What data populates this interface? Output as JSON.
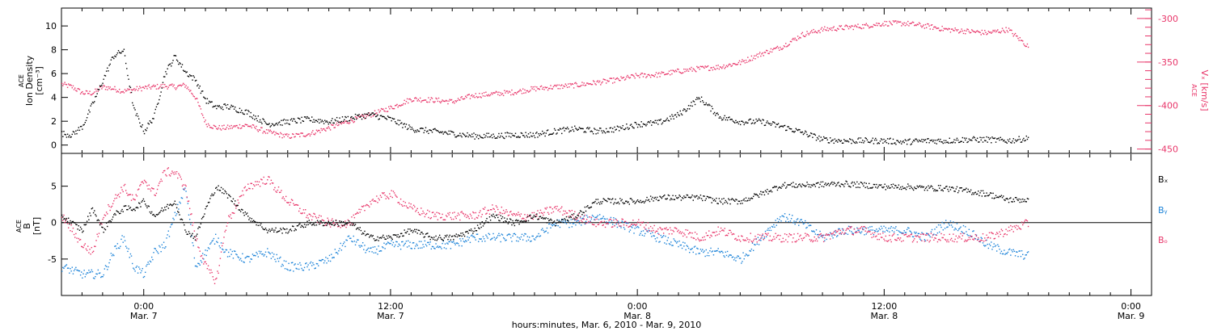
{
  "xaxis": {
    "label": "hours:minutes, Mar. 6, 2010 - Mar. 9, 2010",
    "ticks": [
      {
        "t": 0,
        "time": "0:00",
        "date": "Mar. 7"
      },
      {
        "t": 12,
        "time": "12:00",
        "date": "Mar. 7"
      },
      {
        "t": 24,
        "time": "0:00",
        "date": "Mar. 8"
      },
      {
        "t": 36,
        "time": "12:00",
        "date": "Mar. 8"
      },
      {
        "t": 48,
        "time": "0:00",
        "date": "Mar. 9"
      }
    ]
  },
  "colors": {
    "black": "#000000",
    "pink": "#e8366a",
    "blue": "#1a82d8"
  },
  "chart_data": [
    {
      "type": "scatter",
      "title": "",
      "x_units": "hours since 0:00 Mar. 7, 2010",
      "xlim": [
        -4,
        49
      ],
      "left_axis": {
        "label_line1": "ACE",
        "label_line2": "Ion Density",
        "label_line3": "[cm⁻³]",
        "ylim": [
          -0.7,
          11.5
        ],
        "ticks": [
          0,
          2,
          4,
          6,
          8,
          10
        ]
      },
      "right_axis": {
        "label_line1": "ACE",
        "label_line2": "Vₓ [km/s]",
        "ylim": [
          -455,
          -288
        ],
        "ticks": [
          -300,
          -350,
          -400,
          -450
        ],
        "color": "#e8366a"
      },
      "series": [
        {
          "axis": "left",
          "color": "#000000",
          "x": [
            -4,
            -3.5,
            -3,
            -2.5,
            -2,
            -1.5,
            -1,
            -0.5,
            0,
            0.5,
            1,
            1.5,
            2,
            2.5,
            3,
            3.5,
            4,
            5,
            6,
            7,
            8,
            9,
            10,
            11,
            12,
            13,
            14,
            15,
            16,
            17,
            18,
            19,
            20,
            21,
            22,
            23,
            24,
            25,
            26,
            27,
            28,
            29,
            30,
            31,
            32,
            33,
            34,
            35,
            36,
            37,
            38,
            39,
            40,
            41,
            42,
            43
          ],
          "y": [
            1.0,
            0.9,
            1.6,
            3.5,
            5.5,
            7.5,
            8.0,
            3.0,
            1.2,
            2.5,
            6.0,
            7.5,
            6.2,
            5.5,
            3.8,
            3.2,
            3.3,
            2.8,
            1.8,
            2.0,
            2.2,
            2.0,
            2.3,
            2.6,
            2.2,
            1.4,
            1.2,
            1.0,
            0.8,
            0.8,
            0.9,
            0.9,
            1.2,
            1.4,
            1.2,
            1.4,
            1.8,
            1.9,
            2.6,
            4.0,
            2.4,
            2.0,
            2.0,
            1.6,
            1.1,
            0.5,
            0.4,
            0.4,
            0.4,
            0.3,
            0.4,
            0.4,
            0.5,
            0.5,
            0.4,
            0.6
          ]
        },
        {
          "axis": "right",
          "color": "#e8366a",
          "x": [
            -4,
            -3.5,
            -3,
            -2.5,
            -2,
            -1.5,
            -1,
            -0.5,
            0,
            0.5,
            1,
            1.5,
            2,
            2.5,
            3,
            3.5,
            4,
            5,
            6,
            7,
            8,
            9,
            10,
            11,
            12,
            13,
            14,
            15,
            16,
            17,
            18,
            19,
            20,
            21,
            22,
            23,
            24,
            25,
            26,
            27,
            28,
            29,
            30,
            31,
            32,
            33,
            34,
            35,
            36,
            37,
            38,
            39,
            40,
            41,
            42,
            43
          ],
          "y": [
            -375,
            -378,
            -385,
            -385,
            -378,
            -380,
            -383,
            -381,
            -379,
            -378,
            -377,
            -378,
            -376,
            -390,
            -420,
            -425,
            -425,
            -422,
            -430,
            -435,
            -432,
            -425,
            -417,
            -410,
            -402,
            -392,
            -393,
            -395,
            -388,
            -386,
            -384,
            -380,
            -378,
            -376,
            -373,
            -370,
            -365,
            -364,
            -360,
            -357,
            -355,
            -350,
            -340,
            -332,
            -318,
            -312,
            -310,
            -308,
            -305,
            -305,
            -308,
            -312,
            -314,
            -316,
            -312,
            -332
          ]
        }
      ]
    },
    {
      "type": "scatter",
      "title": "",
      "x_units": "hours since 0:00 Mar. 7, 2010",
      "xlim": [
        -4,
        49
      ],
      "left_axis": {
        "label_line1": "ACE",
        "label_line2": "B",
        "label_line3": "[nT]",
        "ylim": [
          -10,
          9.5
        ],
        "ticks": [
          5,
          0,
          -5
        ]
      },
      "zero_line": true,
      "legend_position": "right",
      "series": [
        {
          "name": "Bₓ",
          "color": "#000000",
          "x": [
            -4,
            -3.5,
            -3,
            -2.5,
            -2,
            -1.5,
            -1,
            -0.5,
            0,
            0.5,
            1,
            1.5,
            2,
            2.5,
            3,
            3.5,
            4,
            5,
            6,
            7,
            8,
            9,
            10,
            11,
            12,
            13,
            14,
            15,
            16,
            17,
            18,
            19,
            20,
            21,
            22,
            23,
            24,
            25,
            26,
            27,
            28,
            29,
            30,
            31,
            32,
            33,
            34,
            35,
            36,
            37,
            38,
            39,
            40,
            41,
            42,
            43
          ],
          "y": [
            1,
            0,
            -1,
            2,
            -1,
            1,
            2,
            2,
            3,
            1,
            2,
            3,
            -1,
            -2,
            2,
            5,
            4,
            1,
            -1,
            -1,
            0,
            0,
            0,
            -2,
            -2,
            -1,
            -2,
            -2,
            -1,
            1,
            0,
            1,
            0,
            1,
            3,
            3,
            3,
            3.5,
            3.5,
            3.5,
            3,
            3,
            4,
            5.2,
            5.2,
            5.3,
            5.4,
            5.2,
            5.0,
            5.0,
            4.8,
            4.8,
            4.4,
            4.0,
            3.2,
            3.2
          ]
        },
        {
          "name": "Bᵧ",
          "color": "#1a82d8",
          "x": [
            -4,
            -3.5,
            -3,
            -2.5,
            -2,
            -1.5,
            -1,
            -0.5,
            0,
            0.5,
            1,
            1.5,
            2,
            2.5,
            3,
            3.5,
            4,
            5,
            6,
            7,
            8,
            9,
            10,
            11,
            12,
            13,
            14,
            15,
            16,
            17,
            18,
            19,
            20,
            21,
            22,
            23,
            24,
            25,
            26,
            27,
            28,
            29,
            30,
            31,
            32,
            33,
            34,
            35,
            36,
            37,
            38,
            39,
            40,
            41,
            42,
            43
          ],
          "y": [
            -6,
            -6.5,
            -7,
            -7,
            -7,
            -4,
            -2,
            -6,
            -7,
            -4,
            -3,
            1,
            5,
            -6,
            -4,
            -2,
            -4,
            -5,
            -4,
            -6,
            -6,
            -5,
            -2,
            -4,
            -3,
            -3,
            -3,
            -3,
            -2,
            -2,
            -2,
            -2,
            0,
            0,
            1,
            0,
            -1,
            -2,
            -3,
            -4,
            -4,
            -5,
            -2,
            1,
            0,
            -2,
            -1,
            -1,
            -1,
            -1,
            -2,
            0,
            -1,
            -3,
            -4,
            -4.5
          ]
        },
        {
          "name": "Bₒ",
          "color": "#e8366a",
          "x": [
            -4,
            -3.5,
            -3,
            -2.5,
            -2,
            -1.5,
            -1,
            -0.5,
            0,
            0.5,
            1,
            1.5,
            2,
            2.5,
            3,
            3.5,
            4,
            5,
            6,
            7,
            8,
            9,
            10,
            11,
            12,
            13,
            14,
            15,
            16,
            17,
            18,
            19,
            20,
            21,
            22,
            23,
            24,
            25,
            26,
            27,
            28,
            29,
            30,
            31,
            32,
            33,
            34,
            35,
            36,
            37,
            38,
            39,
            40,
            41,
            42,
            43
          ],
          "y": [
            1,
            -1,
            -3,
            -4,
            1,
            3,
            5,
            3,
            6,
            4,
            7,
            7,
            5,
            -2,
            -6,
            -8,
            0,
            5,
            6,
            3,
            1,
            0,
            0,
            3,
            4,
            2,
            1,
            1,
            1,
            2,
            1,
            1,
            2,
            1,
            0,
            0,
            0,
            -1,
            -1,
            -2,
            -1,
            -2,
            -2,
            -2,
            -2,
            -2,
            -1,
            -1,
            -2,
            -2,
            -2,
            -2,
            -2,
            -2,
            -1,
            0
          ]
        }
      ]
    }
  ]
}
